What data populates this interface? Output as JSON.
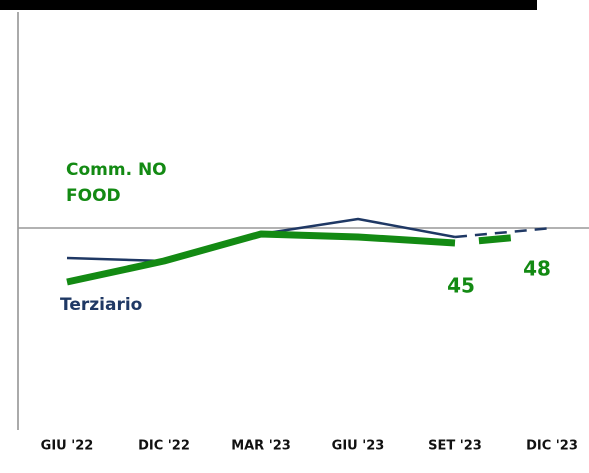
{
  "chart_data": {
    "type": "line",
    "categories": [
      "GIU '22",
      "DIC '22",
      "MAR '23",
      "GIU '23",
      "SET '23",
      "DIC '23"
    ],
    "series": [
      {
        "name": "Terziario",
        "color": "#1f3864",
        "values": [
          40,
          39,
          48,
          53,
          47,
          50
        ]
      },
      {
        "name": "Comm. NO FOOD",
        "color": "#138a13",
        "values": [
          32,
          39,
          48,
          47,
          45,
          48
        ]
      }
    ],
    "ylim": [
      -14,
      122
    ],
    "reference_line": 50,
    "dashed_from_index": 4,
    "labeled_points": [
      4,
      5
    ]
  }
}
